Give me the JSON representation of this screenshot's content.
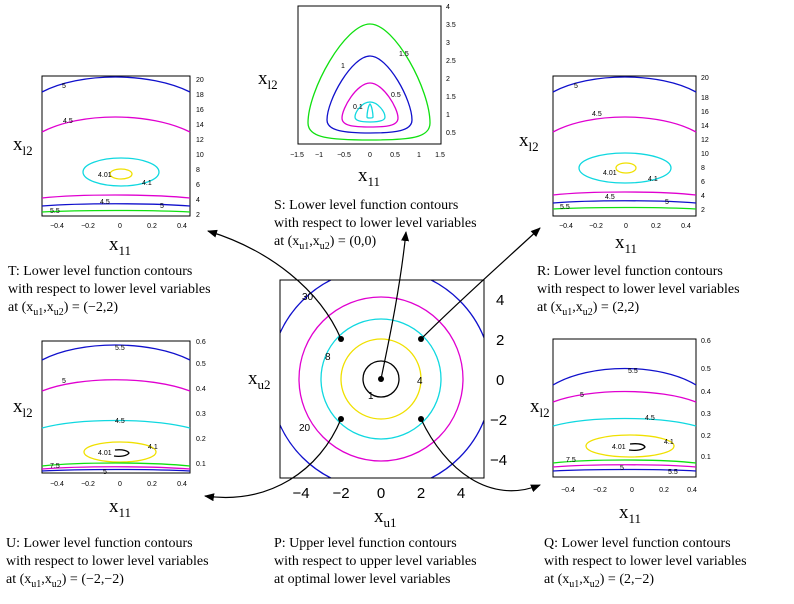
{
  "colors": {
    "blue": "#1010cc",
    "magenta": "#e000d0",
    "cyan": "#10d8e0",
    "yellow": "#f0e000",
    "green": "#10e010",
    "black": "#000000"
  },
  "axis_labels": {
    "x11": {
      "main": "x",
      "sub": "11"
    },
    "x12": {
      "main": "x",
      "sub": "l2"
    },
    "xu1": {
      "main": "x",
      "sub": "u1"
    },
    "xu2": {
      "main": "x",
      "sub": "u2"
    }
  },
  "panels": {
    "S": {
      "xticks": [
        "−1.5",
        "−1",
        "−0.5",
        "0",
        "0.5",
        "1",
        "1.5"
      ],
      "yticks": [
        "0.5",
        "1",
        "1.5",
        "2",
        "2.5",
        "3",
        "3.5",
        "4"
      ],
      "contour_labels": [
        "1.5",
        "1",
        "0.5",
        "0.1"
      ]
    },
    "T": {
      "xticks": [
        "−0.4",
        "−0.2",
        "0",
        "0.2",
        "0.4"
      ],
      "yticks": [
        "2",
        "4",
        "6",
        "8",
        "10",
        "12",
        "14",
        "16",
        "18",
        "20"
      ],
      "contour_labels": [
        "5",
        "4.5",
        "4.1",
        "4.01",
        "4.5",
        "5",
        "5.5"
      ]
    },
    "R": {
      "xticks": [
        "−0.4",
        "−0.2",
        "0",
        "0.2",
        "0.4"
      ],
      "yticks": [
        "2",
        "4",
        "6",
        "8",
        "10",
        "12",
        "14",
        "16",
        "18",
        "20"
      ],
      "contour_labels": [
        "5",
        "4.5",
        "4.1",
        "4.01",
        "4.5",
        "5",
        "5.5"
      ]
    },
    "U": {
      "xticks": [
        "−0.4",
        "−0.2",
        "0",
        "0.2",
        "0.4"
      ],
      "yticks": [
        "0.1",
        "0.2",
        "0.3",
        "0.4",
        "0.5",
        "0.6"
      ],
      "contour_labels": [
        "5.5",
        "5",
        "4.5",
        "4.1",
        "4.01",
        "7.5",
        "5"
      ]
    },
    "Q": {
      "xticks": [
        "−0.4",
        "−0.2",
        "0",
        "0.2",
        "0.4"
      ],
      "yticks": [
        "0.1",
        "0.2",
        "0.3",
        "0.4",
        "0.5",
        "0.6"
      ],
      "contour_labels": [
        "5.5",
        "5",
        "4.5",
        "4.1",
        "4.01",
        "7.5",
        "5",
        "5.5"
      ]
    },
    "P": {
      "xticks": [
        "−4",
        "−2",
        "0",
        "2",
        "4"
      ],
      "yticks": [
        "4",
        "2",
        "0",
        "−2",
        "−4"
      ],
      "contour_labels": [
        "30",
        "8",
        "20",
        "1",
        "4"
      ]
    }
  },
  "captions": {
    "S": [
      "S: Lower level function contours",
      "with respect to lower level variables",
      "at (x",
      "u1",
      ",x",
      "u2",
      ") = (0,0)"
    ],
    "T": [
      "T: Lower level function contours",
      "with respect to lower level variables",
      "at (x",
      "u1",
      ",x",
      "u2",
      ") = (−2,2)"
    ],
    "R": [
      "R: Lower level function contours",
      "with respect to lower level variables",
      "at (x",
      "u1",
      ",x",
      "u2",
      ") = (2,2)"
    ],
    "U": [
      "U: Lower level function contours",
      "with respect to lower level variables",
      "at (x",
      "u1",
      ",x",
      "u2",
      ") = (−2,−2)"
    ],
    "Q": [
      "Q: Lower level function contours",
      "with respect to lower level variables",
      "at (x",
      "u1",
      ",x",
      "u2",
      ") = (2,−2)"
    ],
    "P": [
      "P: Upper level function contours",
      "with respect to upper level variables",
      "at optimal lower level variables"
    ]
  }
}
